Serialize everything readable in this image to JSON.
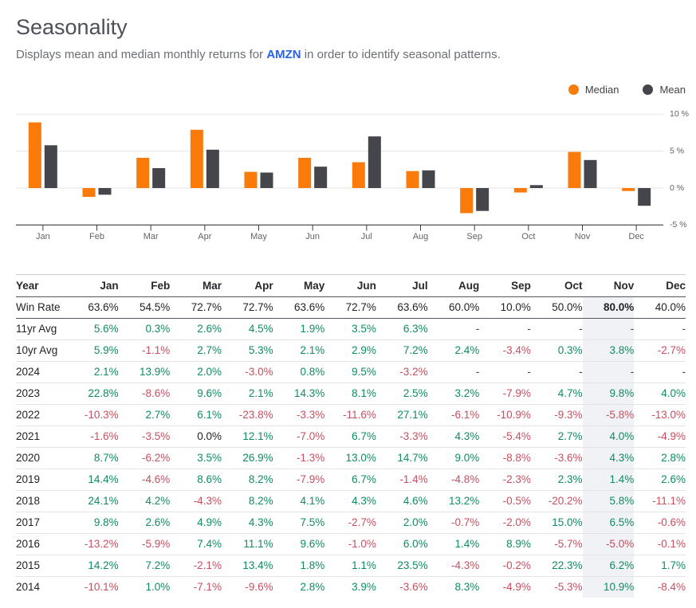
{
  "page": {
    "title": "Seasonality",
    "subtitle_prefix": "Displays mean and median monthly returns for ",
    "ticker": "AMZN",
    "subtitle_suffix": " in order to identify seasonal patterns."
  },
  "colors": {
    "accent": "#2563eb",
    "median": "#fa7a0a",
    "mean": "#45454c",
    "positive": "#0e8c62",
    "negative": "#c84f5f",
    "highlight": "#f1f2f5",
    "grid": "#e5e6e9",
    "axis": "#3a3d42"
  },
  "chart_data": {
    "type": "bar",
    "title": "",
    "categories": [
      "Jan",
      "Feb",
      "Mar",
      "Apr",
      "May",
      "Jun",
      "Jul",
      "Aug",
      "Sep",
      "Oct",
      "Nov",
      "Dec"
    ],
    "series": [
      {
        "name": "Median",
        "color": "#fa7a0a",
        "values": [
          8.9,
          -1.2,
          4.1,
          7.9,
          2.2,
          4.1,
          3.5,
          2.3,
          -3.4,
          -0.6,
          4.9,
          -0.4
        ]
      },
      {
        "name": "Mean",
        "color": "#45454c",
        "values": [
          5.8,
          -0.9,
          2.7,
          5.2,
          2.1,
          2.9,
          7.0,
          2.4,
          -3.1,
          0.4,
          3.8,
          -2.4
        ]
      }
    ],
    "ylim": [
      -5,
      10
    ],
    "yticks": [
      {
        "value": 10,
        "label": "10 %"
      },
      {
        "value": 5,
        "label": "5 %"
      },
      {
        "value": 0,
        "label": "0 %"
      },
      {
        "value": -5,
        "label": "-5 %"
      }
    ],
    "unit": "%",
    "grid": true,
    "axis_side": "right",
    "legend_position": "top-right"
  },
  "table": {
    "highlight_column": "Nov",
    "columns": [
      "Year",
      "Jan",
      "Feb",
      "Mar",
      "Apr",
      "May",
      "Jun",
      "Jul",
      "Aug",
      "Sep",
      "Oct",
      "Nov",
      "Dec"
    ],
    "rows": [
      {
        "label": "Win Rate",
        "values": [
          "63.6%",
          "54.5%",
          "72.7%",
          "72.7%",
          "63.6%",
          "72.7%",
          "63.6%",
          "60.0%",
          "10.0%",
          "50.0%",
          "80.0%",
          "40.0%"
        ]
      },
      {
        "label": "11yr Avg",
        "values": [
          "5.6%",
          "0.3%",
          "2.6%",
          "4.5%",
          "1.9%",
          "3.5%",
          "6.3%",
          "-",
          "-",
          "-",
          "-",
          "-"
        ]
      },
      {
        "label": "10yr Avg",
        "values": [
          "5.9%",
          "-1.1%",
          "2.7%",
          "5.3%",
          "2.1%",
          "2.9%",
          "7.2%",
          "2.4%",
          "-3.4%",
          "0.3%",
          "3.8%",
          "-2.7%"
        ]
      },
      {
        "label": "2024",
        "values": [
          "2.1%",
          "13.9%",
          "2.0%",
          "-3.0%",
          "0.8%",
          "9.5%",
          "-3.2%",
          "-",
          "-",
          "-",
          "-",
          "-"
        ]
      },
      {
        "label": "2023",
        "values": [
          "22.8%",
          "-8.6%",
          "9.6%",
          "2.1%",
          "14.3%",
          "8.1%",
          "2.5%",
          "3.2%",
          "-7.9%",
          "4.7%",
          "9.8%",
          "4.0%"
        ]
      },
      {
        "label": "2022",
        "values": [
          "-10.3%",
          "2.7%",
          "6.1%",
          "-23.8%",
          "-3.3%",
          "-11.6%",
          "27.1%",
          "-6.1%",
          "-10.9%",
          "-9.3%",
          "-5.8%",
          "-13.0%"
        ]
      },
      {
        "label": "2021",
        "values": [
          "-1.6%",
          "-3.5%",
          "0.0%",
          "12.1%",
          "-7.0%",
          "6.7%",
          "-3.3%",
          "4.3%",
          "-5.4%",
          "2.7%",
          "4.0%",
          "-4.9%"
        ]
      },
      {
        "label": "2020",
        "values": [
          "8.7%",
          "-6.2%",
          "3.5%",
          "26.9%",
          "-1.3%",
          "13.0%",
          "14.7%",
          "9.0%",
          "-8.8%",
          "-3.6%",
          "4.3%",
          "2.8%"
        ]
      },
      {
        "label": "2019",
        "values": [
          "14.4%",
          "-4.6%",
          "8.6%",
          "8.2%",
          "-7.9%",
          "6.7%",
          "-1.4%",
          "-4.8%",
          "-2.3%",
          "2.3%",
          "1.4%",
          "2.6%"
        ]
      },
      {
        "label": "2018",
        "values": [
          "24.1%",
          "4.2%",
          "-4.3%",
          "8.2%",
          "4.1%",
          "4.3%",
          "4.6%",
          "13.2%",
          "-0.5%",
          "-20.2%",
          "5.8%",
          "-11.1%"
        ]
      },
      {
        "label": "2017",
        "values": [
          "9.8%",
          "2.6%",
          "4.9%",
          "4.3%",
          "7.5%",
          "-2.7%",
          "2.0%",
          "-0.7%",
          "-2.0%",
          "15.0%",
          "6.5%",
          "-0.6%"
        ]
      },
      {
        "label": "2016",
        "values": [
          "-13.2%",
          "-5.9%",
          "7.4%",
          "11.1%",
          "9.6%",
          "-1.0%",
          "6.0%",
          "1.4%",
          "8.9%",
          "-5.7%",
          "-5.0%",
          "-0.1%"
        ]
      },
      {
        "label": "2015",
        "values": [
          "14.2%",
          "7.2%",
          "-2.1%",
          "13.4%",
          "1.8%",
          "1.1%",
          "23.5%",
          "-4.3%",
          "-0.2%",
          "22.3%",
          "6.2%",
          "1.7%"
        ]
      },
      {
        "label": "2014",
        "values": [
          "-10.1%",
          "1.0%",
          "-7.1%",
          "-9.6%",
          "2.8%",
          "3.9%",
          "-3.6%",
          "8.3%",
          "-4.9%",
          "-5.3%",
          "10.9%",
          "-8.4%"
        ]
      }
    ]
  }
}
